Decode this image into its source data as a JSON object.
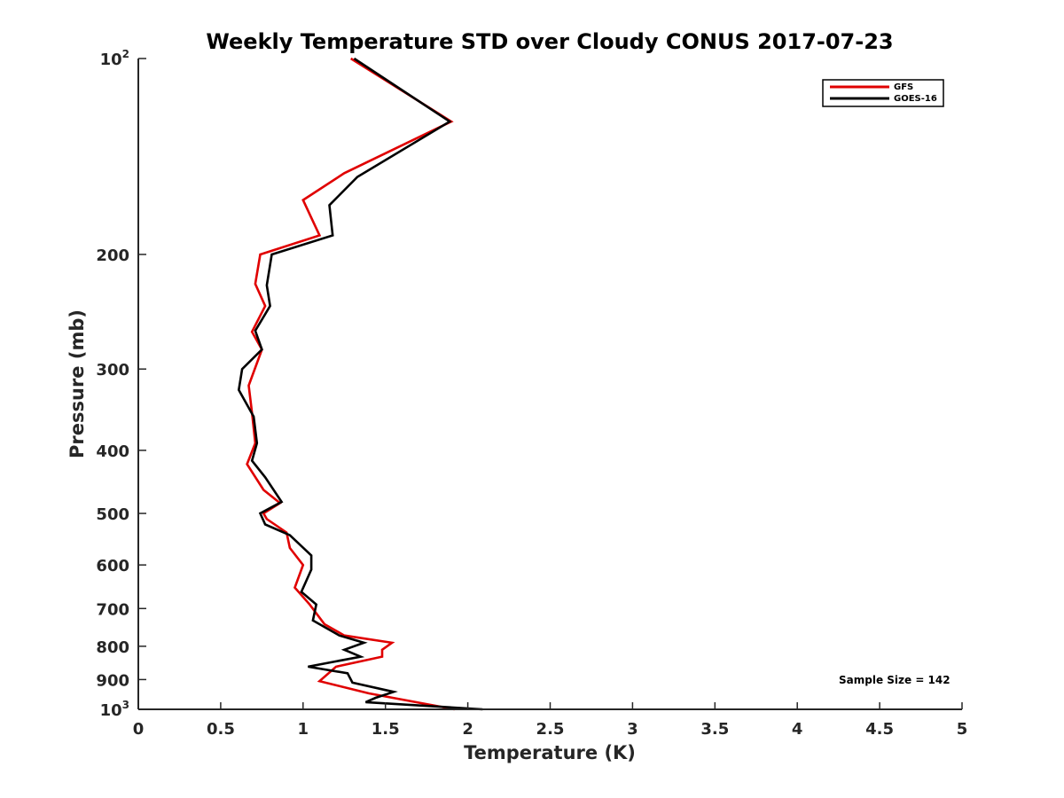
{
  "chart_data": {
    "type": "line",
    "title": "Weekly Temperature STD over Cloudy CONUS 2017-07-23",
    "xlabel": "Temperature (K)",
    "ylabel": "Pressure (mb)",
    "xlim": [
      0,
      5
    ],
    "ylim": [
      100,
      1000
    ],
    "y_scale": "log",
    "y_reversed": true,
    "x_ticks": [
      "0",
      "0.5",
      "1",
      "1.5",
      "2",
      "2.5",
      "3",
      "3.5",
      "4",
      "4.5",
      "5"
    ],
    "y_ticks": [
      {
        "value": 100,
        "base": "10",
        "exp": "2"
      },
      {
        "value": 200,
        "label": "200"
      },
      {
        "value": 300,
        "label": "300"
      },
      {
        "value": 400,
        "label": "400"
      },
      {
        "value": 500,
        "label": "500"
      },
      {
        "value": 600,
        "label": "600"
      },
      {
        "value": 700,
        "label": "700"
      },
      {
        "value": 800,
        "label": "800"
      },
      {
        "value": 900,
        "label": "900"
      },
      {
        "value": 1000,
        "base": "10",
        "exp": "3"
      }
    ],
    "grid": false,
    "legend_position": "top-right",
    "annotation": "Sample Size = 142",
    "series": [
      {
        "name": "GFS",
        "color": "#e00000",
        "points": [
          {
            "t": 1.29,
            "p": 100
          },
          {
            "t": 1.9,
            "p": 125
          },
          {
            "t": 1.25,
            "p": 150
          },
          {
            "t": 1.0,
            "p": 165
          },
          {
            "t": 1.1,
            "p": 187
          },
          {
            "t": 0.74,
            "p": 200
          },
          {
            "t": 0.71,
            "p": 222
          },
          {
            "t": 0.77,
            "p": 240
          },
          {
            "t": 0.69,
            "p": 263
          },
          {
            "t": 0.75,
            "p": 280
          },
          {
            "t": 0.67,
            "p": 318
          },
          {
            "t": 0.69,
            "p": 350
          },
          {
            "t": 0.71,
            "p": 390
          },
          {
            "t": 0.66,
            "p": 420
          },
          {
            "t": 0.76,
            "p": 460
          },
          {
            "t": 0.86,
            "p": 482
          },
          {
            "t": 0.76,
            "p": 500
          },
          {
            "t": 0.78,
            "p": 510
          },
          {
            "t": 0.9,
            "p": 535
          },
          {
            "t": 0.92,
            "p": 565
          },
          {
            "t": 1.0,
            "p": 600
          },
          {
            "t": 0.95,
            "p": 650
          },
          {
            "t": 1.04,
            "p": 690
          },
          {
            "t": 1.13,
            "p": 740
          },
          {
            "t": 1.25,
            "p": 770
          },
          {
            "t": 1.54,
            "p": 790
          },
          {
            "t": 1.48,
            "p": 810
          },
          {
            "t": 1.48,
            "p": 830
          },
          {
            "t": 1.2,
            "p": 860
          },
          {
            "t": 1.1,
            "p": 905
          },
          {
            "t": 1.4,
            "p": 945
          },
          {
            "t": 1.92,
            "p": 1000
          }
        ]
      },
      {
        "name": "GOES-16",
        "color": "#000000",
        "points": [
          {
            "t": 1.31,
            "p": 100
          },
          {
            "t": 1.89,
            "p": 125
          },
          {
            "t": 1.33,
            "p": 152
          },
          {
            "t": 1.16,
            "p": 168
          },
          {
            "t": 1.18,
            "p": 187
          },
          {
            "t": 0.81,
            "p": 200
          },
          {
            "t": 0.78,
            "p": 223
          },
          {
            "t": 0.8,
            "p": 240
          },
          {
            "t": 0.71,
            "p": 262
          },
          {
            "t": 0.75,
            "p": 280
          },
          {
            "t": 0.63,
            "p": 300
          },
          {
            "t": 0.61,
            "p": 323
          },
          {
            "t": 0.7,
            "p": 355
          },
          {
            "t": 0.72,
            "p": 390
          },
          {
            "t": 0.69,
            "p": 415
          },
          {
            "t": 0.77,
            "p": 440
          },
          {
            "t": 0.87,
            "p": 480
          },
          {
            "t": 0.74,
            "p": 500
          },
          {
            "t": 0.77,
            "p": 520
          },
          {
            "t": 0.92,
            "p": 540
          },
          {
            "t": 1.05,
            "p": 580
          },
          {
            "t": 1.05,
            "p": 610
          },
          {
            "t": 0.99,
            "p": 660
          },
          {
            "t": 1.08,
            "p": 690
          },
          {
            "t": 1.06,
            "p": 730
          },
          {
            "t": 1.22,
            "p": 770
          },
          {
            "t": 1.37,
            "p": 790
          },
          {
            "t": 1.25,
            "p": 810
          },
          {
            "t": 1.35,
            "p": 830
          },
          {
            "t": 1.03,
            "p": 860
          },
          {
            "t": 1.27,
            "p": 880
          },
          {
            "t": 1.3,
            "p": 910
          },
          {
            "t": 1.55,
            "p": 940
          },
          {
            "t": 1.44,
            "p": 960
          },
          {
            "t": 1.38,
            "p": 975
          },
          {
            "t": 2.09,
            "p": 1000
          }
        ]
      }
    ]
  }
}
